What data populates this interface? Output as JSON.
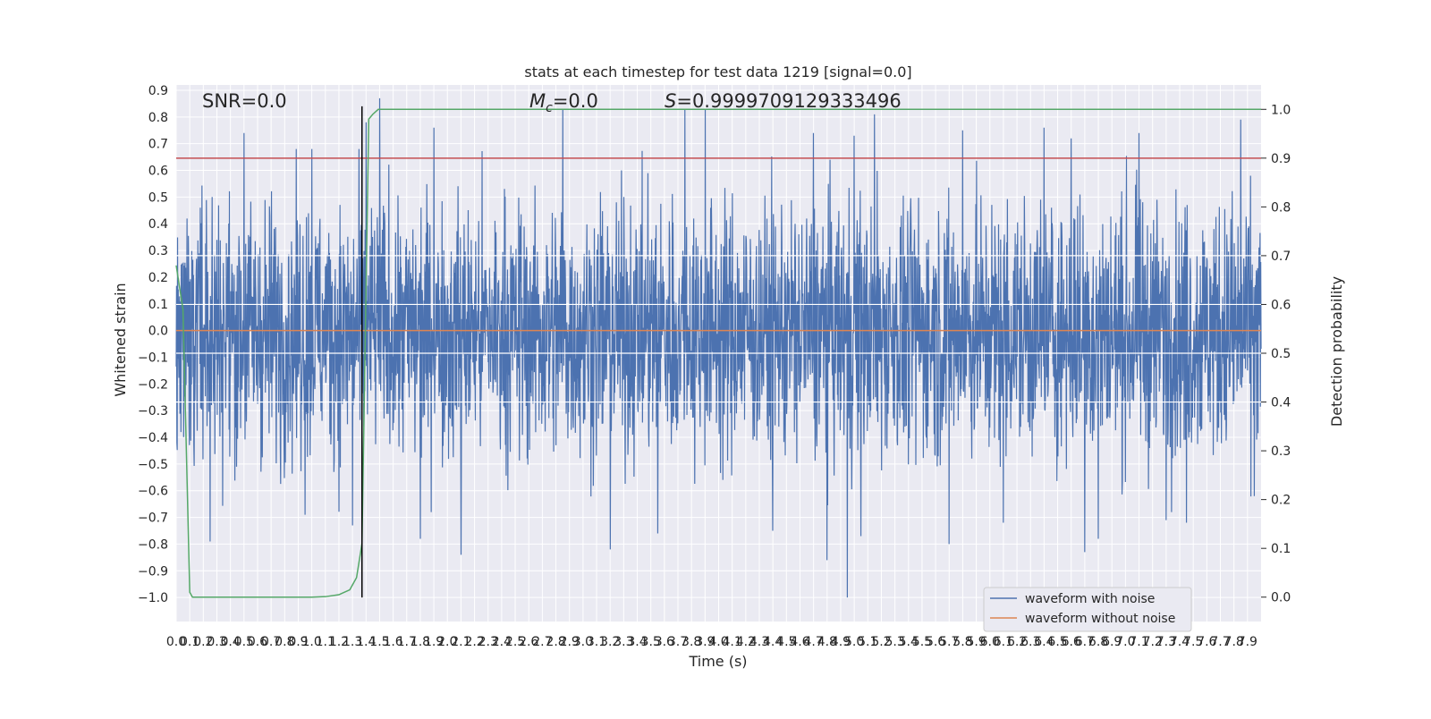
{
  "chart_data": {
    "type": "line",
    "title": "stats at each timestep for test data 1219 [signal=0.0]",
    "xlabel": "Time (s)",
    "ylabel_left": "Whitened strain",
    "ylabel_right": "Detection probability",
    "xlim": [
      0.0,
      8.0
    ],
    "ylim_left": [
      -1.09,
      0.92
    ],
    "ylim_right": [
      -0.05,
      1.05
    ],
    "x_ticks": [
      0.0,
      0.1,
      0.2,
      0.3,
      0.4,
      0.5,
      0.6,
      0.7,
      0.8,
      0.9,
      1.0,
      1.1,
      1.2,
      1.3,
      1.4,
      1.5,
      1.6,
      1.7,
      1.8,
      1.9,
      2.0,
      2.1,
      2.2,
      2.3,
      2.4,
      2.5,
      2.6,
      2.7,
      2.8,
      2.9,
      3.0,
      3.1,
      3.2,
      3.3,
      3.4,
      3.5,
      3.6,
      3.7,
      3.8,
      3.9,
      4.0,
      4.1,
      4.2,
      4.3,
      4.4,
      4.5,
      4.6,
      4.7,
      4.8,
      4.9,
      5.0,
      5.1,
      5.2,
      5.3,
      5.4,
      5.5,
      5.6,
      5.7,
      5.8,
      5.9,
      6.0,
      6.1,
      6.2,
      6.3,
      6.4,
      6.5,
      6.6,
      6.7,
      6.8,
      6.9,
      7.0,
      7.1,
      7.2,
      7.3,
      7.4,
      7.5,
      7.6,
      7.7,
      7.8,
      7.9
    ],
    "x_tick_labels": [
      "0.0",
      "0.1",
      "0.2",
      "0.3",
      "0.4",
      "0.5",
      "0.6",
      "0.7",
      "0.8",
      "0.9",
      "1.0",
      "1.1",
      "1.2",
      "1.3",
      "1.4",
      "1.5",
      "1.6",
      "1.7",
      "1.8",
      "1.9",
      "2.0",
      "2.1",
      "2.2",
      "2.3",
      "2.4",
      "2.5",
      "2.6",
      "2.7",
      "2.8",
      "2.9",
      "3.0",
      "3.1",
      "3.2",
      "3.3",
      "3.4",
      "3.5",
      "3.6",
      "3.7",
      "3.8",
      "3.9",
      "4.0",
      "4.1",
      "4.2",
      "4.3",
      "4.4",
      "4.5",
      "4.6",
      "4.7",
      "4.8",
      "4.9",
      "5.0",
      "5.1",
      "5.2",
      "5.3",
      "5.4",
      "5.5",
      "5.6",
      "5.7",
      "5.8",
      "5.9",
      "6.0",
      "6.1",
      "6.2",
      "6.3",
      "6.4",
      "6.5",
      "6.6",
      "6.7",
      "6.8",
      "6.9",
      "7.0",
      "7.1",
      "7.2",
      "7.3",
      "7.4",
      "7.5",
      "7.6",
      "7.7",
      "7.8",
      "7.9"
    ],
    "y_ticks_left": [
      0.9,
      0.8,
      0.7,
      0.6,
      0.5,
      0.4,
      0.3,
      0.2,
      0.1,
      0.0,
      -0.1,
      -0.2,
      -0.3,
      -0.4,
      -0.5,
      -0.6,
      -0.7,
      -0.8,
      -0.9,
      -1.0
    ],
    "y_tick_labels_left": [
      "0.9",
      "0.8",
      "0.7",
      "0.6",
      "0.5",
      "0.4",
      "0.3",
      "0.2",
      "0.1",
      "0.0",
      "−0.1",
      "−0.2",
      "−0.3",
      "−0.4",
      "−0.5",
      "−0.6",
      "−0.7",
      "−0.8",
      "−0.9",
      "−1.0"
    ],
    "y_ticks_right": [
      1.0,
      0.9,
      0.8,
      0.7,
      0.6,
      0.5,
      0.4,
      0.3,
      0.2,
      0.1,
      0.0
    ],
    "y_tick_labels_right": [
      "1.0",
      "0.9",
      "0.8",
      "0.7",
      "0.6",
      "0.5",
      "0.4",
      "0.3",
      "0.2",
      "0.1",
      "0.0"
    ],
    "grid": true,
    "legend_position": "bottom-right",
    "annotations": {
      "snr": "SNR=0.0",
      "mc_symbol": "M",
      "mc_subscript": "c",
      "mc_value": "=0.0",
      "s_symbol": "S",
      "s_value": "=0.9999709129333496"
    },
    "series": [
      {
        "name": "waveform with noise",
        "axis": "left",
        "color": "#4c72b0",
        "envelope": {
          "positive_extremes": [
            {
              "x": 0.5,
              "y": 0.74
            },
            {
              "x": 1.0,
              "y": 0.68
            },
            {
              "x": 1.4,
              "y": 0.78
            },
            {
              "x": 1.5,
              "y": 0.87
            },
            {
              "x": 1.8,
              "y": 0.8
            },
            {
              "x": 1.9,
              "y": 0.76
            },
            {
              "x": 2.85,
              "y": 0.83
            },
            {
              "x": 3.55,
              "y": 0.84
            },
            {
              "x": 3.75,
              "y": 0.83
            },
            {
              "x": 3.9,
              "y": 0.83
            },
            {
              "x": 4.7,
              "y": 0.74
            },
            {
              "x": 5.0,
              "y": 0.73
            },
            {
              "x": 5.15,
              "y": 0.81
            },
            {
              "x": 5.8,
              "y": 0.75
            },
            {
              "x": 6.4,
              "y": 0.76
            },
            {
              "x": 6.6,
              "y": 0.72
            },
            {
              "x": 7.1,
              "y": 0.74
            },
            {
              "x": 7.85,
              "y": 0.79
            }
          ],
          "negative_extremes": [
            {
              "x": 0.25,
              "y": -0.79
            },
            {
              "x": 0.95,
              "y": -0.69
            },
            {
              "x": 1.3,
              "y": -0.73
            },
            {
              "x": 1.8,
              "y": -0.78
            },
            {
              "x": 2.1,
              "y": -0.84
            },
            {
              "x": 3.2,
              "y": -0.82
            },
            {
              "x": 3.55,
              "y": -0.76
            },
            {
              "x": 4.4,
              "y": -0.75
            },
            {
              "x": 4.8,
              "y": -0.86
            },
            {
              "x": 4.95,
              "y": -1.0
            },
            {
              "x": 5.05,
              "y": -0.77
            },
            {
              "x": 5.7,
              "y": -0.8
            },
            {
              "x": 6.1,
              "y": -0.72
            },
            {
              "x": 6.7,
              "y": -0.83
            },
            {
              "x": 6.8,
              "y": -0.78
            },
            {
              "x": 7.3,
              "y": -0.71
            },
            {
              "x": 7.45,
              "y": -0.72
            },
            {
              "x": 7.95,
              "y": -0.62
            }
          ],
          "typical_amplitude": 0.38
        }
      },
      {
        "name": "waveform without noise",
        "axis": "left",
        "color": "#dd8452",
        "x": [
          0.0,
          8.0
        ],
        "y": [
          0.0,
          0.0
        ]
      },
      {
        "axis": "right",
        "color": "#55a868",
        "x": [
          0.0,
          0.05,
          0.1,
          0.12,
          0.2,
          0.4,
          0.8,
          1.0,
          1.1,
          1.2,
          1.28,
          1.33,
          1.37,
          1.42,
          1.45,
          1.49,
          8.0
        ],
        "y": [
          0.68,
          0.59,
          0.01,
          0.0,
          0.0,
          0.0,
          0.0,
          0.0,
          0.001,
          0.005,
          0.015,
          0.04,
          0.11,
          0.98,
          0.99,
          1.0,
          1.0
        ]
      }
    ],
    "threshold_line": {
      "axis": "right",
      "color": "#c44e52",
      "y": 0.9
    },
    "event_line": {
      "color": "#000000",
      "x": 1.37,
      "y_range_left": [
        -1.0,
        0.84
      ]
    }
  }
}
